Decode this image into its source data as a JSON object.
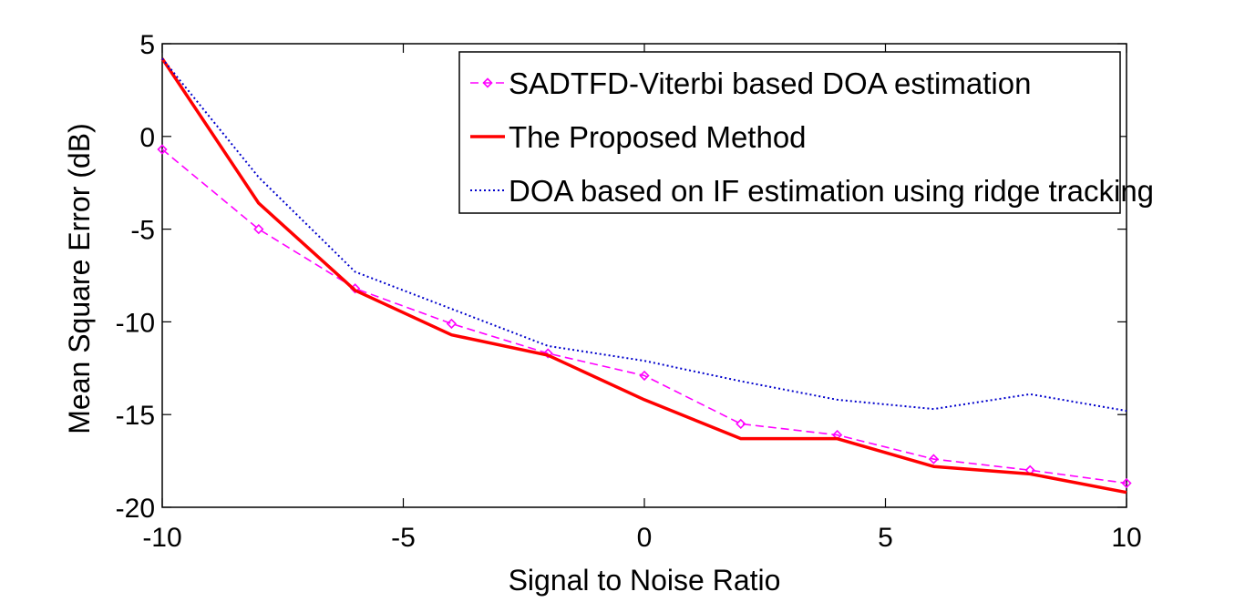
{
  "chart_data": {
    "type": "line",
    "title": "",
    "xlabel": "Signal to Noise Ratio",
    "ylabel": "Mean Square Error (dB)",
    "xlim": [
      -10,
      10
    ],
    "ylim": [
      -20,
      5
    ],
    "xticks": [
      -10,
      -5,
      0,
      5,
      10
    ],
    "yticks": [
      -20,
      -15,
      -10,
      -5,
      0,
      5
    ],
    "grid": false,
    "legend_position": "top-right",
    "x": [
      -10,
      -8,
      -6,
      -4,
      -2,
      0,
      2,
      4,
      6,
      8,
      10
    ],
    "series": [
      {
        "name": "SADTFD-Viterbi based DOA estimation",
        "color": "#ff00ff",
        "style": "dashed-diamond",
        "values": [
          -0.7,
          -5.0,
          -8.2,
          -10.1,
          -11.7,
          -12.9,
          -15.5,
          -16.1,
          -17.4,
          -18.0,
          -18.7
        ]
      },
      {
        "name": "The Proposed Method",
        "color": "#ff0000",
        "style": "solid",
        "values": [
          4.2,
          -3.6,
          -8.3,
          -10.7,
          -11.8,
          -14.2,
          -16.3,
          -16.3,
          -17.8,
          -18.2,
          -19.2
        ]
      },
      {
        "name": "DOA based on IF estimation using ridge tracking",
        "color": "#0000cc",
        "style": "dotted",
        "values": [
          4.2,
          -2.2,
          -7.3,
          -9.3,
          -11.3,
          -12.1,
          -13.2,
          -14.2,
          -14.7,
          -13.9,
          -14.8
        ]
      }
    ]
  }
}
